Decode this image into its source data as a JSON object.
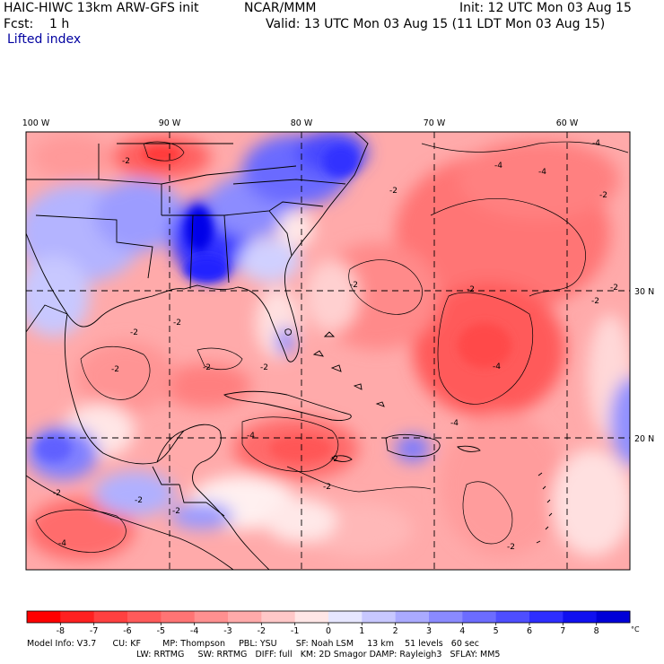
{
  "header": {
    "model_title": "HAIC-HIWC 13km ARW-GFS init",
    "org": "NCAR/MMM",
    "init": "Init: 12 UTC Mon 03 Aug 15",
    "fcst": "Fcst:    1 h",
    "valid": "Valid: 13 UTC Mon 03 Aug 15 (11 LDT Mon 03 Aug 15)",
    "field": "Lifted index"
  },
  "map": {
    "lon_labels": [
      "100 W",
      "90 W",
      "80 W",
      "70 W",
      "60 W"
    ],
    "lat_labels": [
      "30 N",
      "20 N"
    ],
    "contour_labels": [
      "-4",
      "-2",
      "-4",
      "-4",
      "-2",
      "-2",
      "-2",
      "-2",
      "-2",
      "-2",
      "-2",
      "-2",
      "-2",
      "-4",
      "-4",
      "-4",
      "-2",
      "-2",
      "-2",
      "-2",
      "-2",
      "-4",
      "-2",
      "-2",
      "-2"
    ]
  },
  "colorbar": {
    "tick_labels": [
      "-8",
      "-7",
      "-6",
      "-5",
      "-4",
      "-3",
      "-2",
      "-1",
      "0",
      "1",
      "2",
      "3",
      "4",
      "5",
      "6",
      "7",
      "8"
    ],
    "unit": "°C",
    "colors": [
      "#ff0000",
      "#ff2020",
      "#ff4040",
      "#ff5a5a",
      "#ff7474",
      "#ff9090",
      "#ffaaaa",
      "#ffc8c8",
      "#ffe6e6",
      "#e6e6ff",
      "#c8c8ff",
      "#aaaaff",
      "#8a8aff",
      "#6c6cff",
      "#4e4eff",
      "#2e2eff",
      "#1010f0",
      "#0000d8"
    ]
  },
  "footer": {
    "line1": "Model Info: V3.7      CU: KF        MP: Thompson     PBL: YSU       SF: Noah LSM     13 km    51 levels   60 sec",
    "line2": "LW: RRTMG     SW: RRTMG   DIFF: full   KM: 2D Smagor DAMP: Rayleigh3   SFLAY: MM5"
  }
}
